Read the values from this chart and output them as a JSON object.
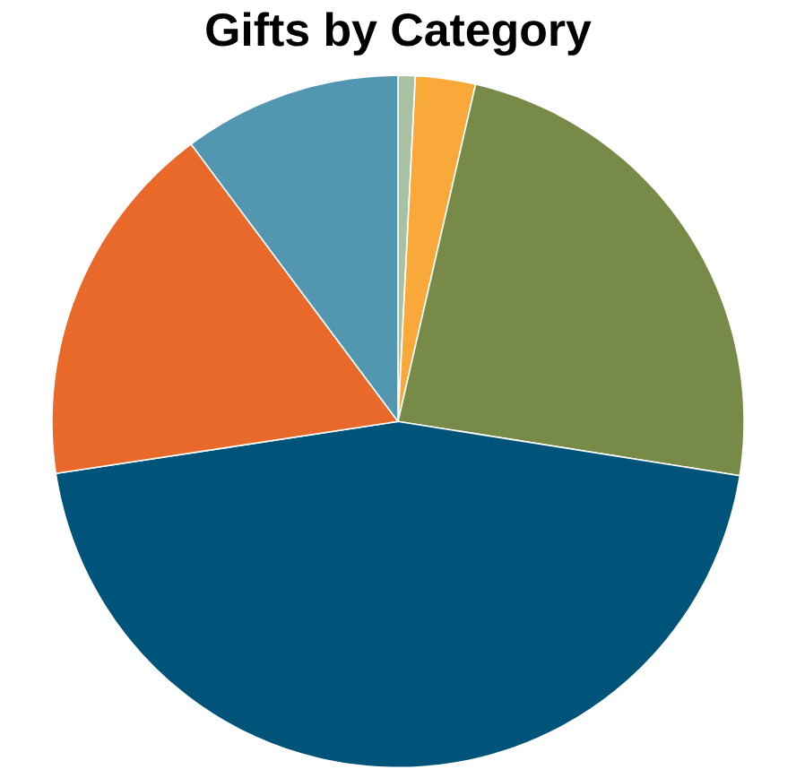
{
  "chart_data": {
    "type": "pie",
    "title": "Gifts by Category",
    "categories": [
      null,
      null,
      null,
      null,
      null,
      null
    ],
    "values": [
      0.8,
      2.8,
      23.9,
      45.1,
      17.2,
      10.2
    ],
    "colors": [
      "#a8c1a2",
      "#f9a83a",
      "#778a48",
      "#005479",
      "#e8692a",
      "#5296b0"
    ]
  }
}
